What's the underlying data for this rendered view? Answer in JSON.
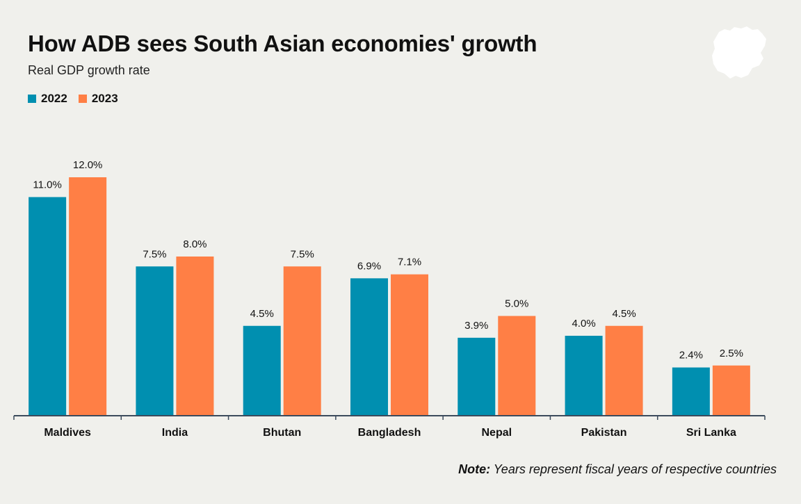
{
  "title": "How ADB sees South Asian economies' growth",
  "subtitle": "Real GDP growth rate",
  "note": {
    "label": "Note:",
    "text": "Years represent fiscal years of respective countries"
  },
  "colors": {
    "series_2022": "#008fb0",
    "series_2023": "#ff7f45",
    "background": "#f0f0ec",
    "axis": "#3b4a5c"
  },
  "logo_icon": "map-silhouette-icon",
  "chart_data": {
    "type": "bar",
    "categories": [
      "Maldives",
      "India",
      "Bhutan",
      "Bangladesh",
      "Nepal",
      "Pakistan",
      "Sri Lanka"
    ],
    "series": [
      {
        "name": "2022",
        "values": [
          11.0,
          7.5,
          4.5,
          6.9,
          3.9,
          4.0,
          2.4
        ],
        "labels": [
          "11.0%",
          "7.5%",
          "4.5%",
          "6.9%",
          "3.9%",
          "4.0%",
          "2.4%"
        ]
      },
      {
        "name": "2023",
        "values": [
          12.0,
          8.0,
          7.5,
          7.1,
          5.0,
          4.5,
          2.5
        ],
        "labels": [
          "12.0%",
          "8.0%",
          "7.5%",
          "7.1%",
          "5.0%",
          "4.5%",
          "2.5%"
        ]
      }
    ],
    "title": "How ADB sees South Asian economies' growth",
    "subtitle": "Real GDP growth rate",
    "xlabel": "",
    "ylabel": "",
    "ylim": [
      0,
      12
    ],
    "unit": "%",
    "grid": false,
    "legend": "top-left",
    "value_labels": true
  }
}
